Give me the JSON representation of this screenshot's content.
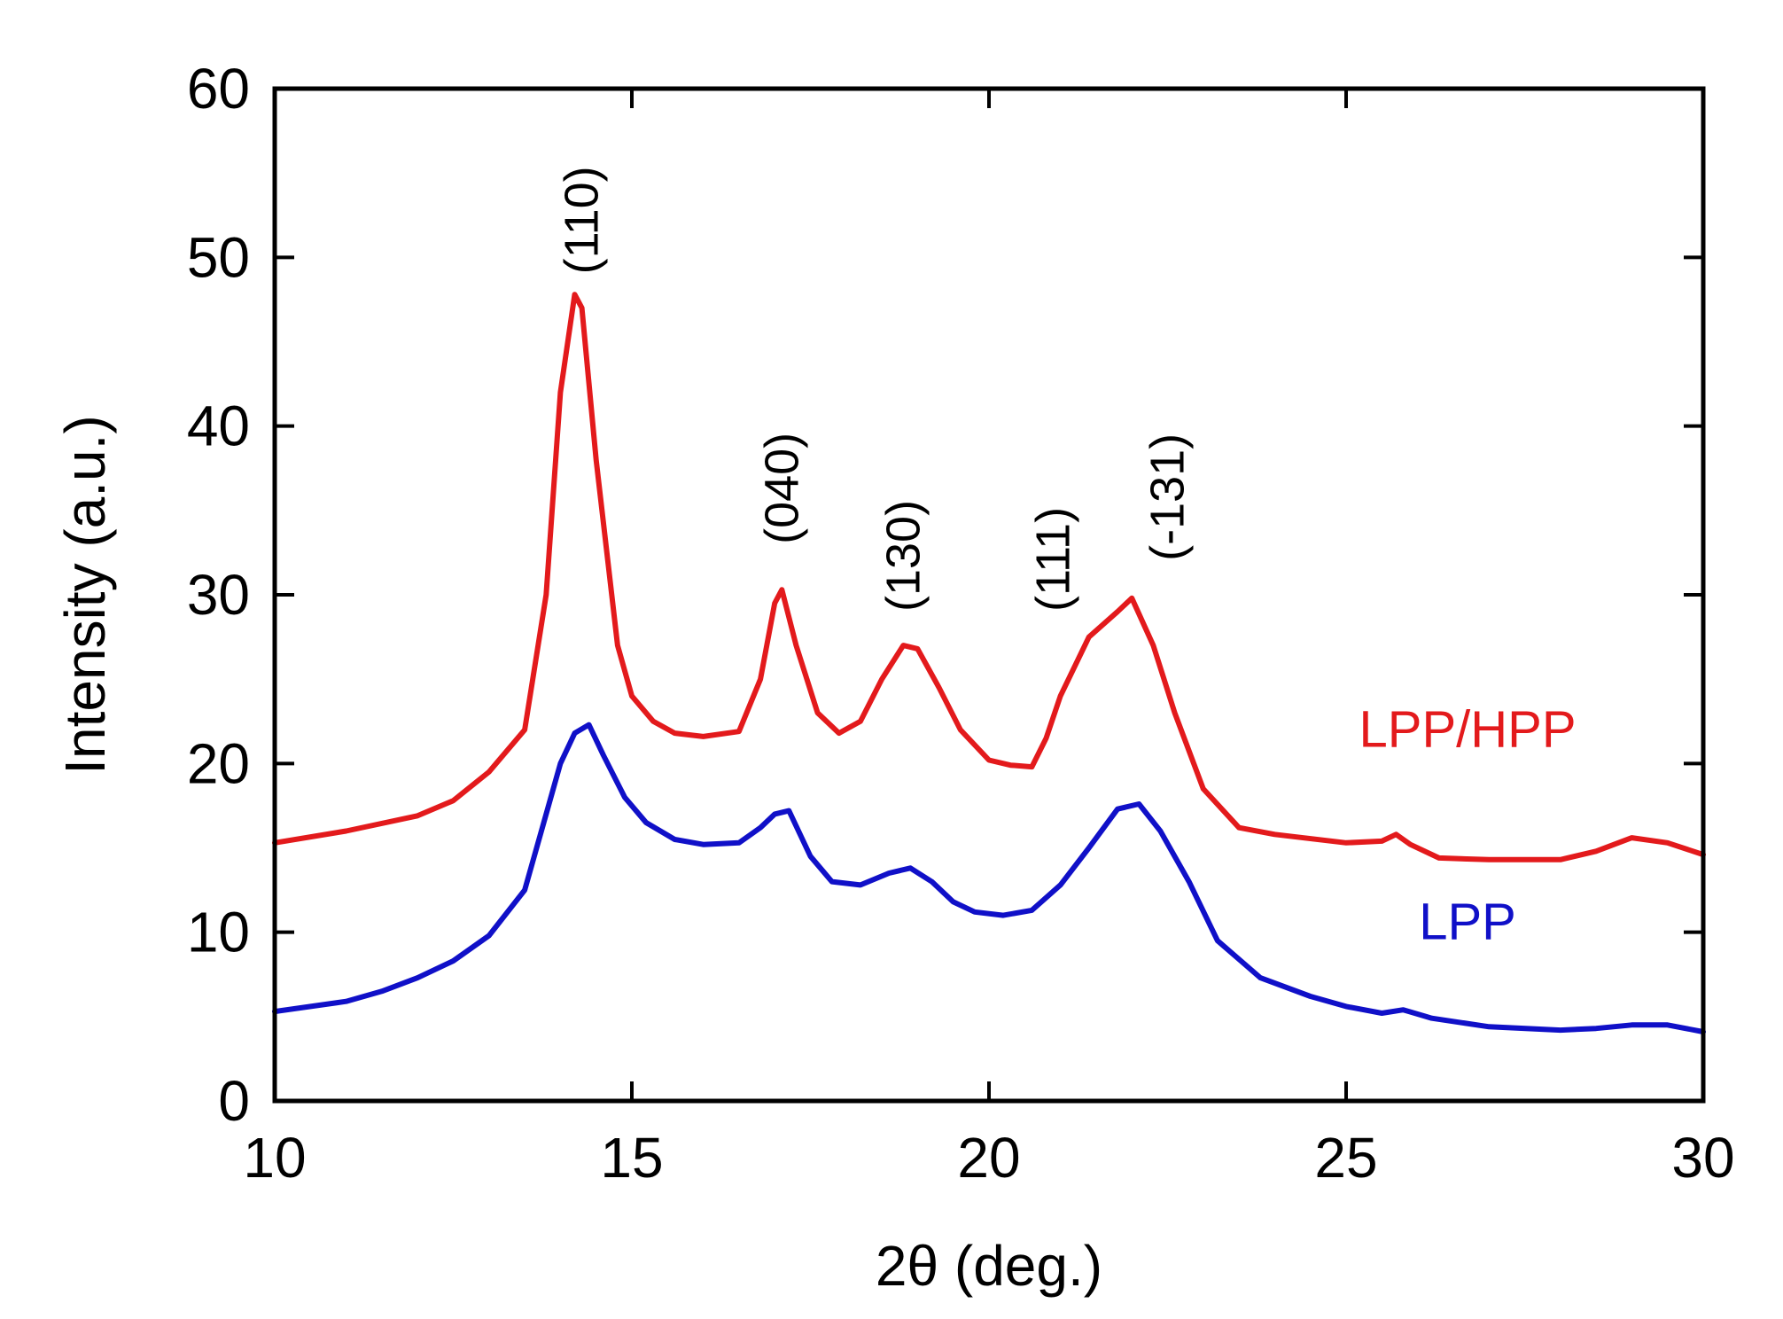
{
  "chart_data": {
    "type": "line",
    "title": "",
    "xlabel": "2θ (deg.)",
    "ylabel": "Intensity (a.u.)",
    "xlim": [
      10,
      30
    ],
    "ylim": [
      0,
      60
    ],
    "xticks": [
      10,
      15,
      20,
      25,
      30
    ],
    "yticks": [
      0,
      10,
      20,
      30,
      40,
      50,
      60
    ],
    "grid": false,
    "annotations": [
      {
        "text": "(110)",
        "x": 14.3,
        "y": 49
      },
      {
        "text": "(040)",
        "x": 17.1,
        "y": 33
      },
      {
        "text": "(130)",
        "x": 18.8,
        "y": 29
      },
      {
        "text": "(111)",
        "x": 20.9,
        "y": 29
      },
      {
        "text": "(-131)",
        "x": 22.5,
        "y": 32
      }
    ],
    "series": [
      {
        "name": "LPP/HPP",
        "color": "#e31a1c",
        "x": [
          10,
          11,
          12,
          12.5,
          13,
          13.5,
          13.8,
          14.0,
          14.2,
          14.3,
          14.5,
          14.8,
          15.0,
          15.3,
          15.6,
          16.0,
          16.5,
          16.8,
          17.0,
          17.1,
          17.3,
          17.6,
          17.9,
          18.2,
          18.5,
          18.8,
          19.0,
          19.3,
          19.6,
          20.0,
          20.3,
          20.6,
          20.8,
          21.0,
          21.4,
          21.8,
          22.0,
          22.3,
          22.6,
          23.0,
          23.5,
          24.0,
          25.0,
          25.5,
          25.7,
          25.9,
          26.3,
          27.0,
          28.0,
          28.5,
          29.0,
          29.5,
          30.0
        ],
        "values": [
          15.3,
          16.0,
          16.9,
          17.8,
          19.5,
          22.0,
          30.0,
          42.0,
          47.8,
          47.0,
          38.0,
          27.0,
          24.0,
          22.5,
          21.8,
          21.6,
          21.9,
          25.0,
          29.5,
          30.3,
          27.0,
          23.0,
          21.8,
          22.5,
          25.0,
          27.0,
          26.8,
          24.5,
          22.0,
          20.2,
          19.9,
          19.8,
          21.5,
          24.0,
          27.5,
          29.0,
          29.8,
          27.0,
          23.0,
          18.5,
          16.2,
          15.8,
          15.3,
          15.4,
          15.8,
          15.2,
          14.4,
          14.3,
          14.3,
          14.8,
          15.6,
          15.3,
          14.6
        ]
      },
      {
        "name": "LPP",
        "color": "#1010c8",
        "x": [
          10,
          11,
          11.5,
          12,
          12.5,
          13,
          13.5,
          13.8,
          14.0,
          14.2,
          14.4,
          14.6,
          14.9,
          15.2,
          15.6,
          16.0,
          16.5,
          16.8,
          17.0,
          17.2,
          17.5,
          17.8,
          18.2,
          18.6,
          18.9,
          19.2,
          19.5,
          19.8,
          20.2,
          20.6,
          21.0,
          21.4,
          21.8,
          22.1,
          22.4,
          22.8,
          23.2,
          23.8,
          24.5,
          25.0,
          25.5,
          25.8,
          26.2,
          27.0,
          28.0,
          28.5,
          29.0,
          29.5,
          30.0
        ],
        "values": [
          5.3,
          5.9,
          6.5,
          7.3,
          8.3,
          9.8,
          12.5,
          17.0,
          20.0,
          21.8,
          22.3,
          20.5,
          18.0,
          16.5,
          15.5,
          15.2,
          15.3,
          16.2,
          17.0,
          17.2,
          14.5,
          13.0,
          12.8,
          13.5,
          13.8,
          13.0,
          11.8,
          11.2,
          11.0,
          11.3,
          12.8,
          15.0,
          17.3,
          17.6,
          16.0,
          13.0,
          9.5,
          7.3,
          6.2,
          5.6,
          5.2,
          5.4,
          4.9,
          4.4,
          4.2,
          4.3,
          4.5,
          4.5,
          4.1
        ]
      }
    ],
    "legend": [
      {
        "text": "LPP/HPP",
        "color": "#e31a1c",
        "x": 26.7,
        "y": 21.0
      },
      {
        "text": "LPP",
        "color": "#1010c8",
        "x": 26.7,
        "y": 9.6
      }
    ]
  }
}
